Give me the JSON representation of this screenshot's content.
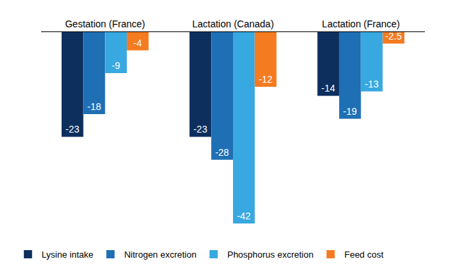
{
  "chart_data": {
    "type": "bar",
    "categories": [
      "Gestation (France)",
      "Lactation (Canada)",
      "Lactation (France)"
    ],
    "series": [
      {
        "name": "Lysine intake",
        "color": "#0c2f5e",
        "values": [
          -23,
          -23,
          -14
        ]
      },
      {
        "name": "Nitrogen excretion",
        "color": "#1f6fb5",
        "values": [
          -18,
          -28,
          -19
        ]
      },
      {
        "name": "Phosphorus excretion",
        "color": "#38a8e0",
        "values": [
          -9,
          -42,
          -13
        ]
      },
      {
        "name": "Feed cost",
        "color": "#f47b20",
        "values": [
          -4,
          -12,
          -2.5
        ]
      }
    ],
    "ylim": [
      -42,
      0
    ],
    "data_labels": true,
    "tick_labels": "x",
    "grid": false,
    "legend": "bottom"
  }
}
